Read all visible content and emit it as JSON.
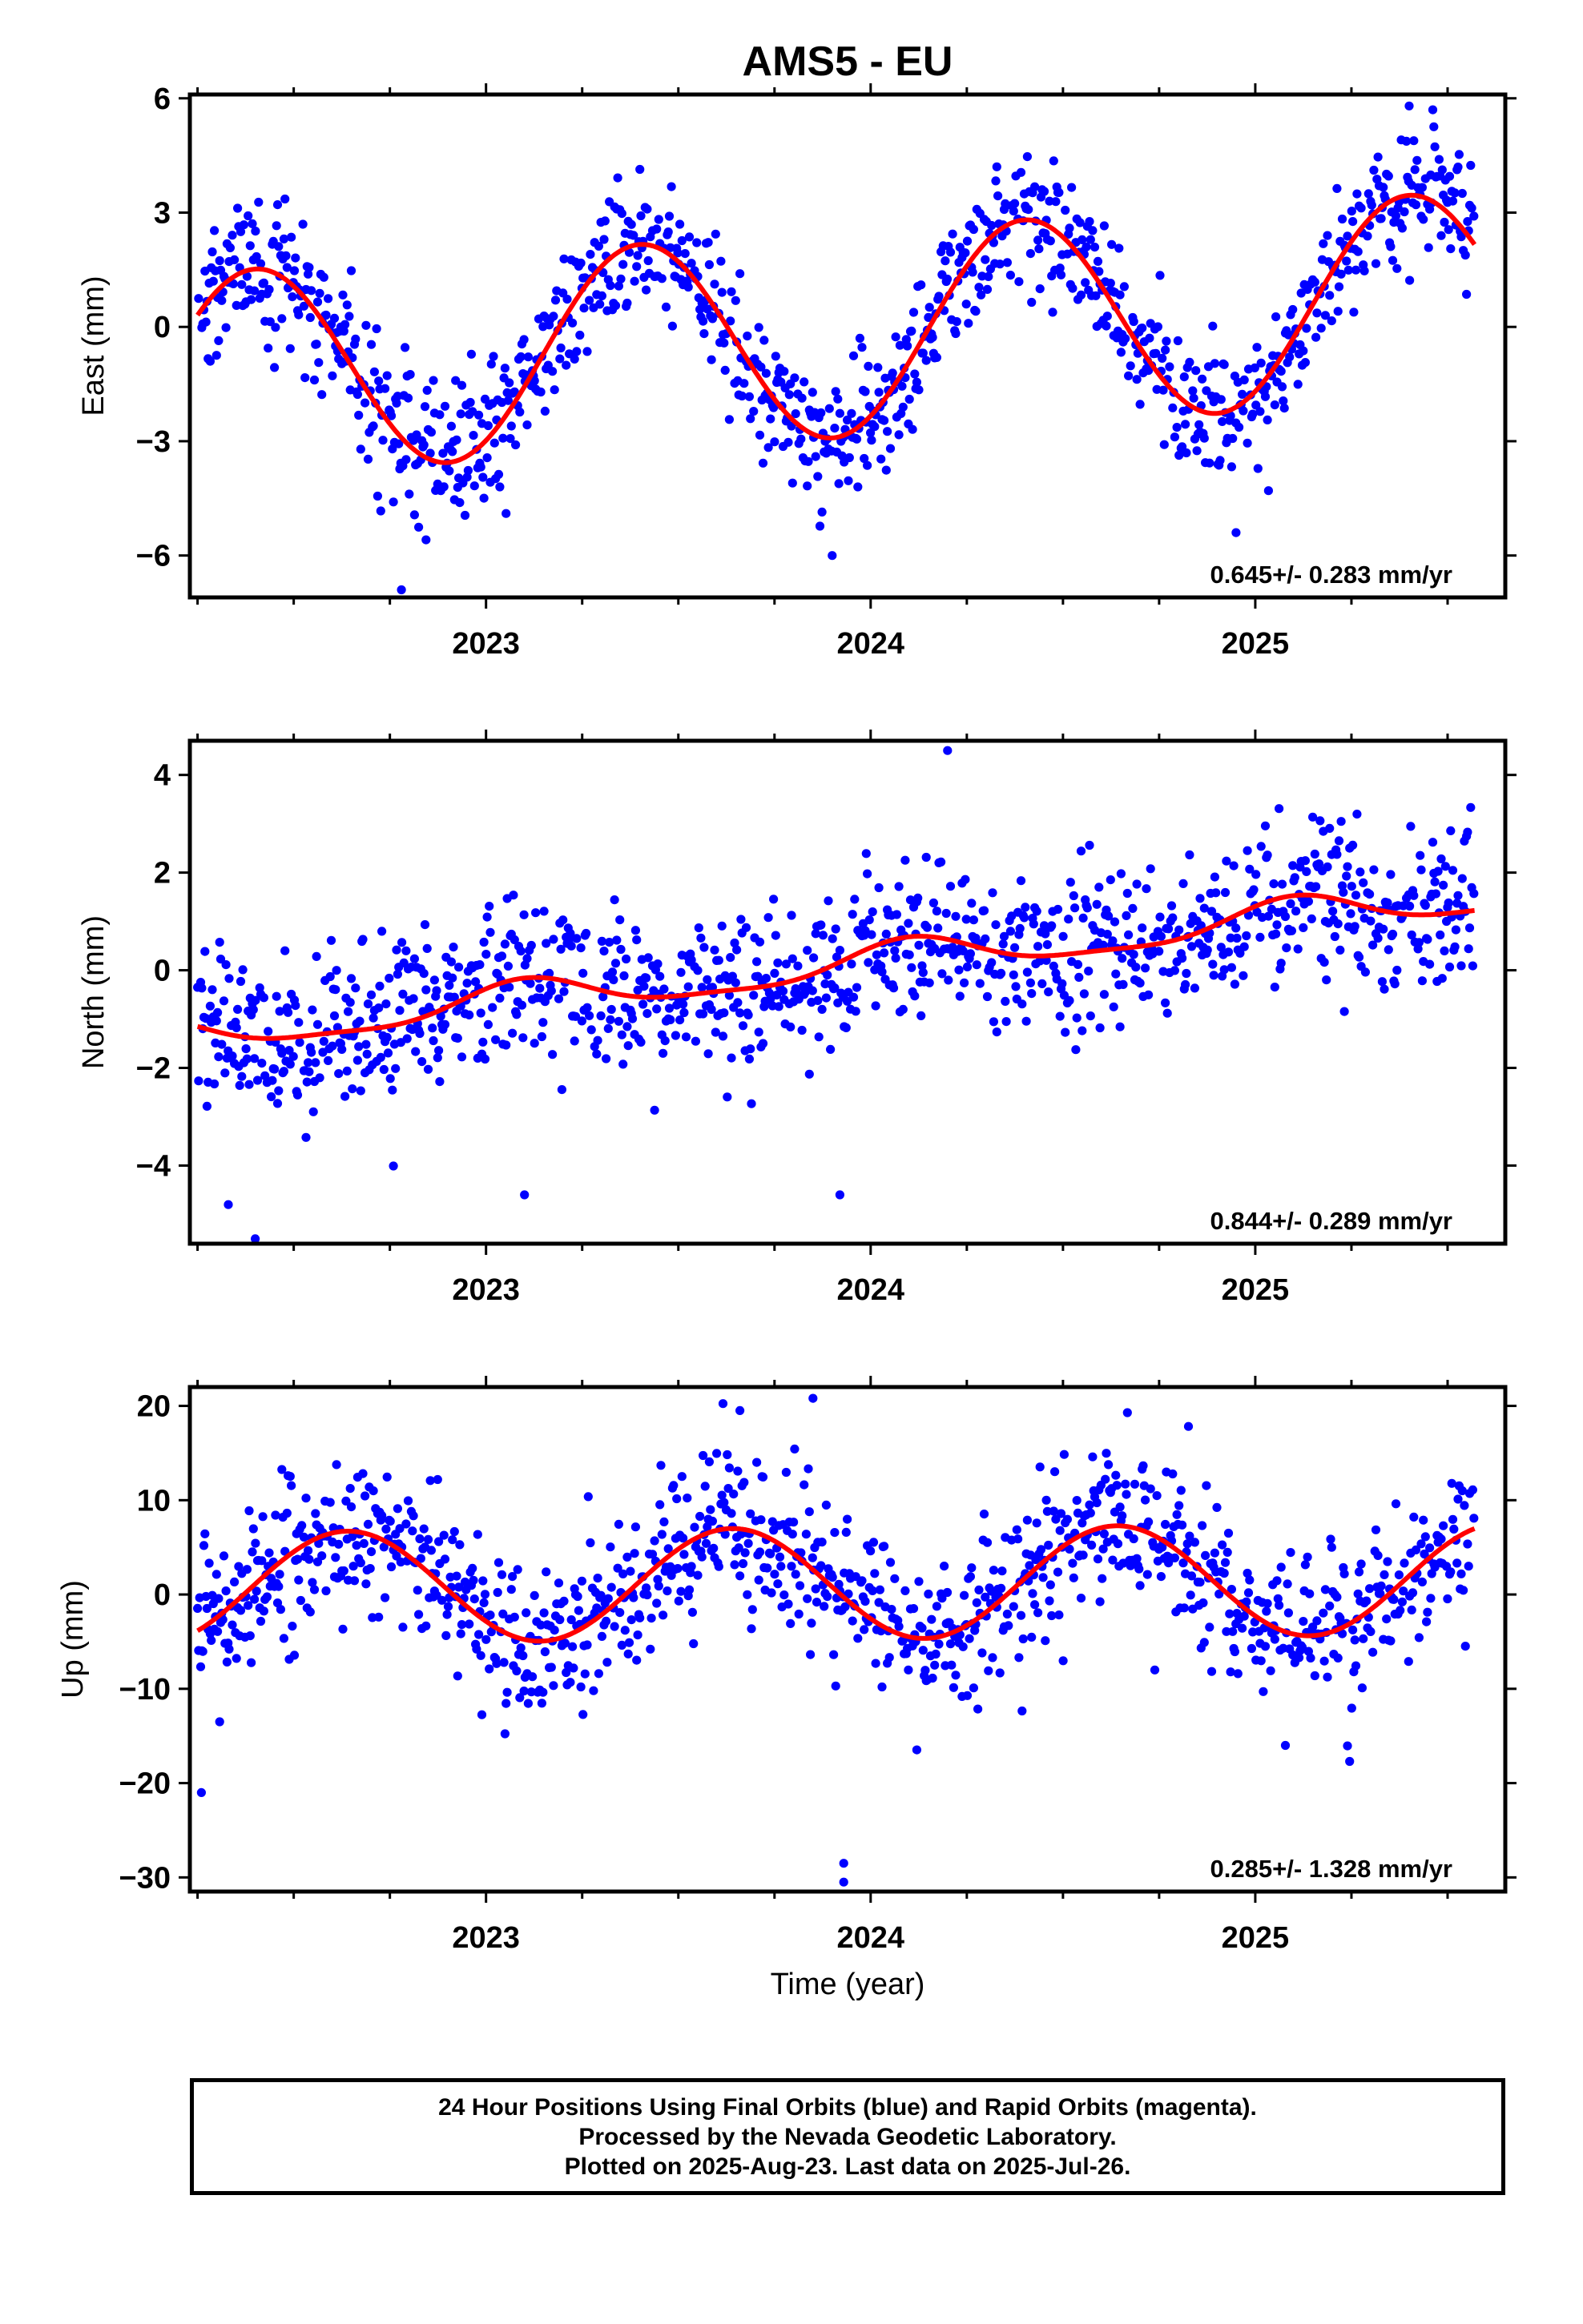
{
  "title": "AMS5 - EU",
  "footer": {
    "lines": [
      "24 Hour Positions Using Final Orbits (blue) and Rapid Orbits (magenta).",
      "Processed by the Nevada Geodetic Laboratory.",
      "Plotted on 2025-Aug-23. Last data on 2025-Jul-26."
    ]
  },
  "colors": {
    "points": "#0000ff",
    "fit": "#ff0000",
    "frame": "#000000"
  },
  "chart_data": [
    {
      "type": "scatter",
      "ylabel": "East (mm)",
      "xlabel": "",
      "xlim": [
        2022.23,
        2025.65
      ],
      "ylim": [
        -7.1,
        6.1
      ],
      "yticks": [
        6,
        3,
        0,
        -3,
        -6
      ],
      "xticks": [
        2023,
        2024,
        2025
      ],
      "rate_label": "0.645+/- 0.283 mm/yr",
      "data_range": [
        2022.25,
        2025.57
      ],
      "fit": {
        "offset": -0.15,
        "trend": 0.645,
        "annual_amp": 2.7,
        "annual_phase_peak": 2024.4,
        "semi_amp": 0.0,
        "semi_phase_peak": 2024.4,
        "ref_year": 2024.0
      },
      "scatter_sigma": 0.9,
      "outliers": [
        [
          2022.78,
          -6.9
        ],
        [
          2023.9,
          -6.0
        ],
        [
          2024.95,
          -5.4
        ],
        [
          2025.4,
          5.8
        ]
      ],
      "series": [
        {
          "name": "",
          "kind": "points",
          "role": "daily positions"
        },
        {
          "name": "",
          "kind": "line",
          "role": "model fit"
        }
      ]
    },
    {
      "type": "scatter",
      "ylabel": "North (mm)",
      "xlabel": "",
      "xlim": [
        2022.23,
        2025.65
      ],
      "ylim": [
        -5.6,
        4.7
      ],
      "yticks": [
        4,
        2,
        0,
        -2,
        -4
      ],
      "xticks": [
        2023,
        2024,
        2025
      ],
      "rate_label": "0.844+/- 0.289 mm/yr",
      "data_range": [
        2022.25,
        2025.57
      ],
      "fit": {
        "offset": 0.15,
        "trend": 0.844,
        "annual_amp": 0.35,
        "annual_phase_peak": 2024.1,
        "semi_amp": 0.1,
        "semi_phase_peak": 2024.1,
        "ref_year": 2024.0
      },
      "scatter_sigma": 0.8,
      "outliers": [
        [
          2022.4,
          -5.5
        ],
        [
          2022.33,
          -4.8
        ],
        [
          2023.92,
          -4.6
        ],
        [
          2024.2,
          4.5
        ],
        [
          2023.1,
          -4.6
        ]
      ],
      "series": [
        {
          "name": "",
          "kind": "points",
          "role": "daily positions"
        },
        {
          "name": "",
          "kind": "line",
          "role": "model fit"
        }
      ]
    },
    {
      "type": "scatter",
      "ylabel": "Up (mm)",
      "xlabel": "Time (year)",
      "xlim": [
        2022.23,
        2025.65
      ],
      "ylim": [
        -31.5,
        22.0
      ],
      "yticks": [
        20,
        10,
        0,
        -10,
        -20,
        -30
      ],
      "xticks": [
        2023,
        2024,
        2025
      ],
      "rate_label": "0.285+/- 1.328 mm/yr",
      "data_range": [
        2022.25,
        2025.57
      ],
      "fit": {
        "offset": 1.2,
        "trend": 0.285,
        "annual_amp": 5.9,
        "annual_phase_peak": 2024.64,
        "semi_amp": 0.0,
        "semi_phase_peak": 2024.64,
        "ref_year": 2024.0
      },
      "scatter_sigma": 4.2,
      "outliers": [
        [
          2023.93,
          -28.5
        ],
        [
          2023.93,
          -30.5
        ],
        [
          2022.26,
          -21.0
        ],
        [
          2023.85,
          20.8
        ],
        [
          2023.66,
          19.5
        ]
      ],
      "series": [
        {
          "name": "",
          "kind": "points",
          "role": "daily positions"
        },
        {
          "name": "",
          "kind": "line",
          "role": "model fit"
        }
      ]
    }
  ]
}
